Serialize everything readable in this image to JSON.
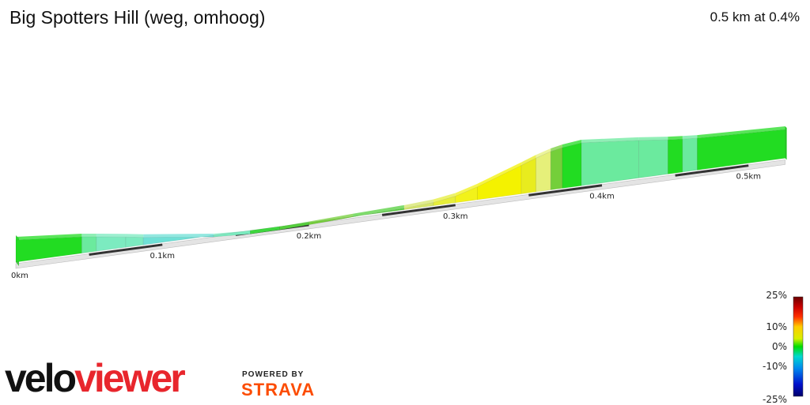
{
  "header": {
    "title": "Big Spotters Hill (weg, omhoog)",
    "summary": "0.5 km at 0.4%"
  },
  "chart_data": {
    "type": "area",
    "title": "Big Spotters Hill (weg, omhoog)",
    "x_unit": "km",
    "x_ticks": [
      {
        "value": 0,
        "label": "0km"
      },
      {
        "value": 0.1,
        "label": "0.1km"
      },
      {
        "value": 0.2,
        "label": "0.2km"
      },
      {
        "value": 0.3,
        "label": "0.3km"
      },
      {
        "value": 0.4,
        "label": "0.4km"
      },
      {
        "value": 0.5,
        "label": "0.5km"
      }
    ],
    "xlim": [
      0,
      0.525
    ],
    "segments": [
      {
        "start_km": 0.0,
        "end_km": 0.045,
        "gradient_pct": 0
      },
      {
        "start_km": 0.045,
        "end_km": 0.055,
        "gradient_pct": -1
      },
      {
        "start_km": 0.055,
        "end_km": 0.075,
        "gradient_pct": -3
      },
      {
        "start_km": 0.075,
        "end_km": 0.087,
        "gradient_pct": -4
      },
      {
        "start_km": 0.087,
        "end_km": 0.135,
        "gradient_pct": -6
      },
      {
        "start_km": 0.135,
        "end_km": 0.16,
        "gradient_pct": -3
      },
      {
        "start_km": 0.16,
        "end_km": 0.18,
        "gradient_pct": 1
      },
      {
        "start_km": 0.18,
        "end_km": 0.2,
        "gradient_pct": 2
      },
      {
        "start_km": 0.2,
        "end_km": 0.23,
        "gradient_pct": 3
      },
      {
        "start_km": 0.23,
        "end_km": 0.265,
        "gradient_pct": 2
      },
      {
        "start_km": 0.265,
        "end_km": 0.285,
        "gradient_pct": 4
      },
      {
        "start_km": 0.285,
        "end_km": 0.3,
        "gradient_pct": 6
      },
      {
        "start_km": 0.3,
        "end_km": 0.315,
        "gradient_pct": 8
      },
      {
        "start_km": 0.315,
        "end_km": 0.345,
        "gradient_pct": 9
      },
      {
        "start_km": 0.345,
        "end_km": 0.355,
        "gradient_pct": 7
      },
      {
        "start_km": 0.355,
        "end_km": 0.365,
        "gradient_pct": 5
      },
      {
        "start_km": 0.365,
        "end_km": 0.373,
        "gradient_pct": 3
      },
      {
        "start_km": 0.373,
        "end_km": 0.386,
        "gradient_pct": 0
      },
      {
        "start_km": 0.386,
        "end_km": 0.425,
        "gradient_pct": -2
      },
      {
        "start_km": 0.425,
        "end_km": 0.445,
        "gradient_pct": -1
      },
      {
        "start_km": 0.445,
        "end_km": 0.455,
        "gradient_pct": 0
      },
      {
        "start_km": 0.455,
        "end_km": 0.465,
        "gradient_pct": -1
      },
      {
        "start_km": 0.465,
        "end_km": 0.525,
        "gradient_pct": 0
      }
    ],
    "legend": {
      "labels": [
        "25%",
        "10%",
        "0%",
        "-10%",
        "-25%"
      ],
      "values": [
        25,
        10,
        0,
        -10,
        -25
      ]
    }
  },
  "branding": {
    "logo_text": "veloviewer",
    "powered_by": "POWERED BY",
    "partner": "STRAVA",
    "colors": {
      "velo_black": "#111111",
      "viewer_red": "#e8262d",
      "strava_orange": "#fc4c02"
    }
  }
}
